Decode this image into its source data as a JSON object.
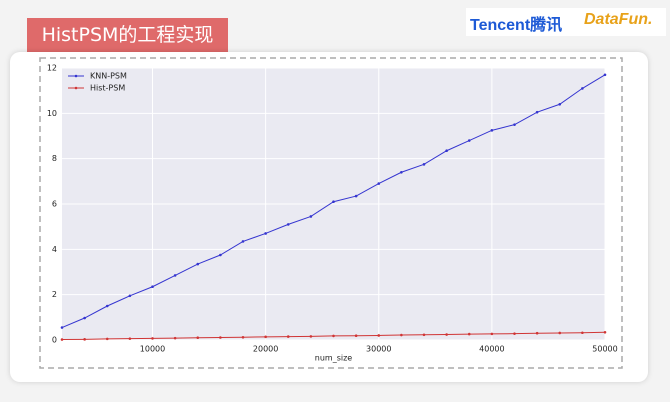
{
  "header": {
    "title": "HistPSM的工程实现",
    "logo_tencent": "Tencent腾讯",
    "logo_datafun": "DataFun."
  },
  "chart_data": {
    "type": "line",
    "x_label": "num_size",
    "x": [
      2000,
      4000,
      6000,
      8000,
      10000,
      12000,
      14000,
      16000,
      18000,
      20000,
      22000,
      24000,
      26000,
      28000,
      30000,
      32000,
      34000,
      36000,
      38000,
      40000,
      42000,
      44000,
      46000,
      48000,
      50000
    ],
    "series": [
      {
        "name": "KNN-PSM",
        "color": "#3535d0",
        "values": [
          0.55,
          0.97,
          1.5,
          1.95,
          2.35,
          2.85,
          3.35,
          3.75,
          4.35,
          4.7,
          5.1,
          5.45,
          6.1,
          6.35,
          6.9,
          7.4,
          7.75,
          8.35,
          8.8,
          9.25,
          9.5,
          10.05,
          10.4,
          11.1,
          11.7
        ]
      },
      {
        "name": "Hist-PSM",
        "color": "#d03535",
        "values": [
          0.02,
          0.03,
          0.05,
          0.06,
          0.07,
          0.08,
          0.1,
          0.11,
          0.12,
          0.14,
          0.15,
          0.16,
          0.18,
          0.19,
          0.2,
          0.22,
          0.23,
          0.24,
          0.26,
          0.27,
          0.28,
          0.3,
          0.31,
          0.32,
          0.34
        ]
      }
    ],
    "xlim": [
      2000,
      50000
    ],
    "xticks": [
      10000,
      20000,
      30000,
      40000,
      50000
    ],
    "ylim": [
      0,
      12
    ],
    "yticks": [
      0,
      2,
      4,
      6,
      8,
      10,
      12
    ],
    "grid": true,
    "legend": "upper left"
  }
}
